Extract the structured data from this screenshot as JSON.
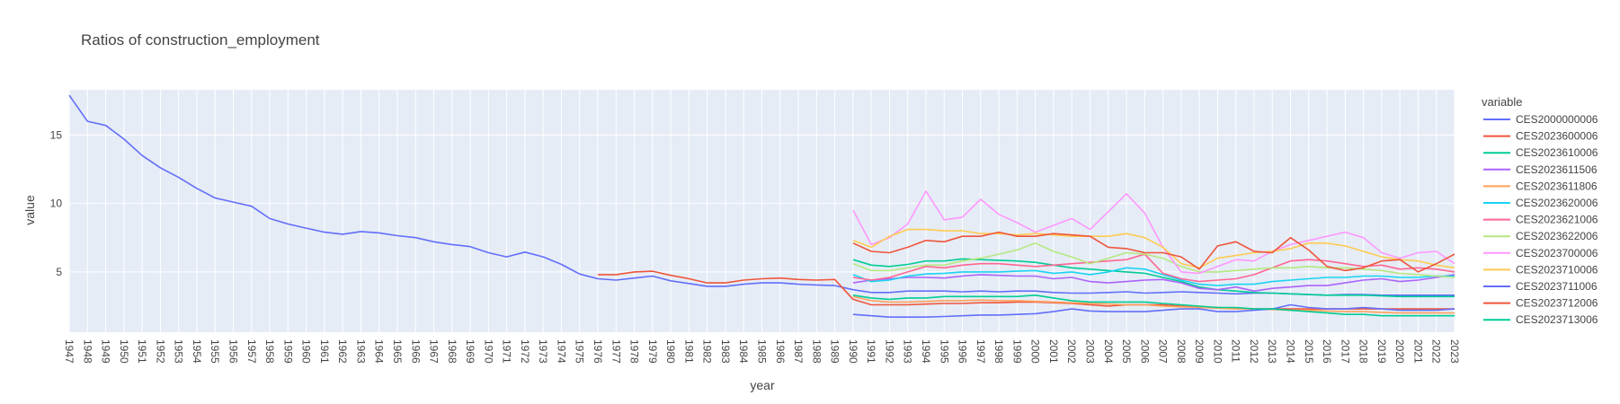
{
  "chart_data": {
    "type": "line",
    "title": "Ratios of construction_employment",
    "xlabel": "year",
    "ylabel": "value",
    "xlim": [
      1947,
      2023
    ],
    "ylim": [
      0.6,
      18.3
    ],
    "y_ticks": [
      5,
      10,
      15
    ],
    "grid": true,
    "plot_background": "#E5ECF6",
    "legend": {
      "title": "variable",
      "placement": "right"
    },
    "series": [
      {
        "name": "CES2000000006",
        "color": "#636EFA",
        "x": [
          1947,
          1948,
          1949,
          1950,
          1951,
          1952,
          1953,
          1954,
          1955,
          1956,
          1957,
          1958,
          1959,
          1960,
          1961,
          1962,
          1963,
          1964,
          1965,
          1966,
          1967,
          1968,
          1969,
          1970,
          1971,
          1972,
          1973,
          1974,
          1975,
          1976,
          1977,
          1978,
          1979,
          1980,
          1981,
          1982,
          1983,
          1984,
          1985,
          1986,
          1987,
          1988,
          1989,
          1990,
          1991,
          1992,
          1993,
          1994,
          1995,
          1996,
          1997,
          1998,
          1999,
          2000,
          2001,
          2002,
          2003,
          2004,
          2005,
          2006,
          2007,
          2008,
          2009,
          2010,
          2011,
          2012,
          2013,
          2014,
          2015,
          2016,
          2017,
          2018,
          2019,
          2020,
          2021,
          2022,
          2023
        ],
        "values": [
          17.9,
          16.0,
          15.7,
          14.7,
          13.5,
          12.6,
          11.9,
          11.1,
          10.4,
          10.1,
          9.8,
          8.9,
          8.5,
          8.2,
          7.9,
          7.75,
          7.95,
          7.85,
          7.65,
          7.5,
          7.2,
          7.0,
          6.85,
          6.4,
          6.1,
          6.45,
          6.1,
          5.55,
          4.85,
          4.5,
          4.4,
          4.55,
          4.7,
          4.35,
          4.15,
          3.95,
          3.95,
          4.1,
          4.2,
          4.2,
          4.1,
          4.05,
          4.0,
          3.7,
          3.5,
          3.5,
          3.6,
          3.6,
          3.6,
          3.55,
          3.6,
          3.55,
          3.6,
          3.6,
          3.5,
          3.45,
          3.45,
          3.5,
          3.55,
          3.45,
          3.5,
          3.55,
          3.5,
          3.45,
          3.4,
          3.45,
          3.45,
          3.4,
          3.35,
          3.3,
          3.35,
          3.35,
          3.3,
          3.3,
          3.3,
          3.3,
          3.3
        ]
      },
      {
        "name": "CES2023600006",
        "color": "#EF553B",
        "x": [
          1976,
          1977,
          1978,
          1979,
          1980,
          1981,
          1982,
          1983,
          1984,
          1985,
          1986,
          1987,
          1988,
          1989,
          1990,
          1991,
          1992,
          1993,
          1994,
          1995,
          1996,
          1997,
          1998,
          1999,
          2000,
          2001,
          2002,
          2003,
          2004,
          2005,
          2006,
          2007,
          2008,
          2009,
          2010,
          2011,
          2012,
          2013,
          2014,
          2015,
          2016,
          2017,
          2018,
          2019,
          2020,
          2021,
          2022,
          2023
        ],
        "values": [
          4.8,
          4.8,
          5.0,
          5.05,
          4.75,
          4.5,
          4.2,
          4.2,
          4.4,
          4.5,
          4.55,
          4.45,
          4.4,
          4.45,
          3.0,
          2.6,
          2.6,
          2.6,
          2.65,
          2.7,
          2.7,
          2.75,
          2.75,
          2.8,
          2.8,
          2.75,
          2.7,
          2.6,
          2.5,
          2.6,
          2.6,
          2.6,
          2.5,
          2.4,
          2.4,
          2.35,
          2.3,
          2.3,
          2.3,
          2.3,
          2.3,
          2.3,
          2.3,
          2.3,
          2.3,
          2.3,
          2.3,
          2.3
        ]
      },
      {
        "name": "CES2023610006",
        "color": "#00CC96",
        "x": [
          1990,
          1991,
          1992,
          1993,
          1994,
          1995,
          1996,
          1997,
          1998,
          1999,
          2000,
          2001,
          2002,
          2003,
          2004,
          2005,
          2006,
          2007,
          2008,
          2009,
          2010,
          2011,
          2012,
          2013,
          2014,
          2015,
          2016,
          2017,
          2018,
          2019,
          2020,
          2021,
          2022,
          2023
        ],
        "values": [
          5.9,
          5.5,
          5.4,
          5.55,
          5.8,
          5.8,
          5.95,
          5.9,
          5.85,
          5.8,
          5.7,
          5.5,
          5.3,
          5.2,
          5.1,
          5.0,
          4.9,
          4.6,
          4.3,
          3.9,
          3.7,
          3.6,
          3.5,
          3.45,
          3.4,
          3.35,
          3.3,
          3.3,
          3.3,
          3.25,
          3.2,
          3.2,
          3.2,
          3.2
        ]
      },
      {
        "name": "CES2023611506",
        "color": "#AB63FA",
        "x": [
          1990,
          1991,
          1992,
          1993,
          1994,
          1995,
          1996,
          1997,
          1998,
          1999,
          2000,
          2001,
          2002,
          2003,
          2004,
          2005,
          2006,
          2007,
          2008,
          2009,
          2010,
          2011,
          2012,
          2013,
          2014,
          2015,
          2016,
          2017,
          2018,
          2019,
          2020,
          2021,
          2022,
          2023
        ],
        "values": [
          4.2,
          4.4,
          4.5,
          4.6,
          4.6,
          4.55,
          4.7,
          4.8,
          4.75,
          4.7,
          4.7,
          4.5,
          4.6,
          4.3,
          4.2,
          4.3,
          4.4,
          4.45,
          4.2,
          3.8,
          3.7,
          3.9,
          3.6,
          3.8,
          3.9,
          4.0,
          4.0,
          4.2,
          4.4,
          4.5,
          4.3,
          4.4,
          4.6,
          4.8
        ]
      },
      {
        "name": "CES2023611806",
        "color": "#FFA15A",
        "x": [
          1990,
          1991,
          1992,
          1993,
          1994,
          1995,
          1996,
          1997,
          1998,
          1999,
          2000,
          2001,
          2002,
          2003,
          2004,
          2005,
          2006,
          2007,
          2008,
          2009,
          2010,
          2011,
          2012,
          2013,
          2014,
          2015,
          2016,
          2017,
          2018,
          2019,
          2020,
          2021,
          2022,
          2023
        ],
        "values": [
          3.2,
          2.9,
          2.8,
          2.8,
          2.85,
          2.9,
          2.9,
          2.95,
          2.9,
          2.9,
          2.85,
          2.8,
          2.75,
          2.7,
          2.65,
          2.6,
          2.6,
          2.5,
          2.45,
          2.4,
          2.35,
          2.3,
          2.3,
          2.25,
          2.2,
          2.2,
          2.15,
          2.1,
          2.1,
          2.05,
          2.0,
          2.0,
          2.0,
          2.0
        ]
      },
      {
        "name": "CES2023620006",
        "color": "#19D3F3",
        "x": [
          1990,
          1991,
          1992,
          1993,
          1994,
          1995,
          1996,
          1997,
          1998,
          1999,
          2000,
          2001,
          2002,
          2003,
          2004,
          2005,
          2006,
          2007,
          2008,
          2009,
          2010,
          2011,
          2012,
          2013,
          2014,
          2015,
          2016,
          2017,
          2018,
          2019,
          2020,
          2021,
          2022,
          2023
        ],
        "values": [
          4.8,
          4.3,
          4.4,
          4.7,
          4.85,
          4.9,
          5.0,
          5.0,
          5.0,
          5.05,
          5.1,
          4.9,
          5.0,
          4.8,
          5.0,
          5.3,
          5.2,
          4.8,
          4.4,
          4.1,
          4.0,
          4.1,
          4.1,
          4.3,
          4.4,
          4.5,
          4.6,
          4.6,
          4.7,
          4.7,
          4.6,
          4.6,
          4.7,
          4.7
        ]
      },
      {
        "name": "CES2023621006",
        "color": "#FF6692",
        "x": [
          1990,
          1991,
          1992,
          1993,
          1994,
          1995,
          1996,
          1997,
          1998,
          1999,
          2000,
          2001,
          2002,
          2003,
          2004,
          2005,
          2006,
          2007,
          2008,
          2009,
          2010,
          2011,
          2012,
          2013,
          2014,
          2015,
          2016,
          2017,
          2018,
          2019,
          2020,
          2021,
          2022,
          2023
        ],
        "values": [
          4.6,
          4.4,
          4.6,
          5.0,
          5.4,
          5.3,
          5.5,
          5.6,
          5.6,
          5.5,
          5.4,
          5.5,
          5.6,
          5.7,
          5.8,
          5.9,
          6.3,
          4.9,
          4.5,
          4.3,
          4.4,
          4.5,
          4.8,
          5.3,
          5.8,
          5.9,
          5.8,
          5.6,
          5.4,
          5.5,
          5.2,
          5.3,
          5.2,
          5.0
        ]
      },
      {
        "name": "CES2023622006",
        "color": "#B6E880",
        "x": [
          1990,
          1991,
          1992,
          1993,
          1994,
          1995,
          1996,
          1997,
          1998,
          1999,
          2000,
          2001,
          2002,
          2003,
          2004,
          2005,
          2006,
          2007,
          2008,
          2009,
          2010,
          2011,
          2012,
          2013,
          2014,
          2015,
          2016,
          2017,
          2018,
          2019,
          2020,
          2021,
          2022,
          2023
        ],
        "values": [
          5.6,
          5.1,
          5.1,
          5.3,
          5.5,
          5.5,
          5.8,
          6.0,
          6.3,
          6.6,
          7.1,
          6.5,
          6.1,
          5.6,
          6.0,
          6.4,
          6.3,
          6.0,
          5.4,
          5.0,
          5.0,
          5.1,
          5.2,
          5.3,
          5.3,
          5.4,
          5.3,
          5.3,
          5.2,
          5.1,
          4.9,
          4.8,
          4.7,
          4.6
        ]
      },
      {
        "name": "CES2023700006",
        "color": "#FF97FF",
        "x": [
          1990,
          1991,
          1992,
          1993,
          1994,
          1995,
          1996,
          1997,
          1998,
          1999,
          2000,
          2001,
          2002,
          2003,
          2004,
          2005,
          2006,
          2007,
          2008,
          2009,
          2010,
          2011,
          2012,
          2013,
          2014,
          2015,
          2016,
          2017,
          2018,
          2019,
          2020,
          2021,
          2022,
          2023
        ],
        "values": [
          9.5,
          7.0,
          7.5,
          8.5,
          10.9,
          8.8,
          9.0,
          10.3,
          9.2,
          8.6,
          7.9,
          8.4,
          8.9,
          8.1,
          9.4,
          10.7,
          9.3,
          6.8,
          5.0,
          4.9,
          5.4,
          5.9,
          5.8,
          6.5,
          7.0,
          7.3,
          7.6,
          7.9,
          7.5,
          6.4,
          6.0,
          6.4,
          6.5,
          5.6
        ]
      },
      {
        "name": "CES2023710006",
        "color": "#FECB52",
        "x": [
          1990,
          1991,
          1992,
          1993,
          1994,
          1995,
          1996,
          1997,
          1998,
          1999,
          2000,
          2001,
          2002,
          2003,
          2004,
          2005,
          2006,
          2007,
          2008,
          2009,
          2010,
          2011,
          2012,
          2013,
          2014,
          2015,
          2016,
          2017,
          2018,
          2019,
          2020,
          2021,
          2022,
          2023
        ],
        "values": [
          7.3,
          6.8,
          7.6,
          8.1,
          8.1,
          8.0,
          8.0,
          7.8,
          7.8,
          7.7,
          7.8,
          7.7,
          7.6,
          7.6,
          7.6,
          7.8,
          7.5,
          6.8,
          5.6,
          5.3,
          6.0,
          6.2,
          6.4,
          6.5,
          6.7,
          7.1,
          7.1,
          6.9,
          6.5,
          6.1,
          5.9,
          5.8,
          5.5,
          5.3
        ]
      },
      {
        "name": "CES2023711006",
        "color": "#636EFA",
        "x": [
          1990,
          1991,
          1992,
          1993,
          1994,
          1995,
          1996,
          1997,
          1998,
          1999,
          2000,
          2001,
          2002,
          2003,
          2004,
          2005,
          2006,
          2007,
          2008,
          2009,
          2010,
          2011,
          2012,
          2013,
          2014,
          2015,
          2016,
          2017,
          2018,
          2019,
          2020,
          2021,
          2022,
          2023
        ],
        "values": [
          1.9,
          1.8,
          1.7,
          1.7,
          1.7,
          1.75,
          1.8,
          1.85,
          1.85,
          1.9,
          1.95,
          2.1,
          2.3,
          2.15,
          2.1,
          2.1,
          2.1,
          2.2,
          2.3,
          2.3,
          2.1,
          2.1,
          2.2,
          2.3,
          2.6,
          2.4,
          2.3,
          2.3,
          2.4,
          2.3,
          2.2,
          2.2,
          2.2,
          2.3
        ]
      },
      {
        "name": "CES2023712006",
        "color": "#EF553B",
        "x": [
          1990,
          1991,
          1992,
          1993,
          1994,
          1995,
          1996,
          1997,
          1998,
          1999,
          2000,
          2001,
          2002,
          2003,
          2004,
          2005,
          2006,
          2007,
          2008,
          2009,
          2010,
          2011,
          2012,
          2013,
          2014,
          2015,
          2016,
          2017,
          2018,
          2019,
          2020,
          2021,
          2022,
          2023
        ],
        "values": [
          7.1,
          6.5,
          6.4,
          6.8,
          7.3,
          7.2,
          7.6,
          7.6,
          7.9,
          7.6,
          7.6,
          7.8,
          7.7,
          7.6,
          6.8,
          6.7,
          6.4,
          6.4,
          6.1,
          5.2,
          6.9,
          7.2,
          6.5,
          6.4,
          7.5,
          6.6,
          5.4,
          5.1,
          5.3,
          5.8,
          5.9,
          5.0,
          5.6,
          6.3
        ]
      },
      {
        "name": "CES2023713006",
        "color": "#00CC96",
        "x": [
          1990,
          1991,
          1992,
          1993,
          1994,
          1995,
          1996,
          1997,
          1998,
          1999,
          2000,
          2001,
          2002,
          2003,
          2004,
          2005,
          2006,
          2007,
          2008,
          2009,
          2010,
          2011,
          2012,
          2013,
          2014,
          2015,
          2016,
          2017,
          2018,
          2019,
          2020,
          2021,
          2022,
          2023
        ],
        "values": [
          3.3,
          3.1,
          3.0,
          3.1,
          3.1,
          3.2,
          3.2,
          3.2,
          3.2,
          3.2,
          3.3,
          3.1,
          2.9,
          2.8,
          2.8,
          2.8,
          2.8,
          2.7,
          2.6,
          2.5,
          2.4,
          2.4,
          2.3,
          2.3,
          2.2,
          2.1,
          2.0,
          1.9,
          1.9,
          1.8,
          1.8,
          1.8,
          1.8,
          1.8
        ]
      }
    ]
  }
}
